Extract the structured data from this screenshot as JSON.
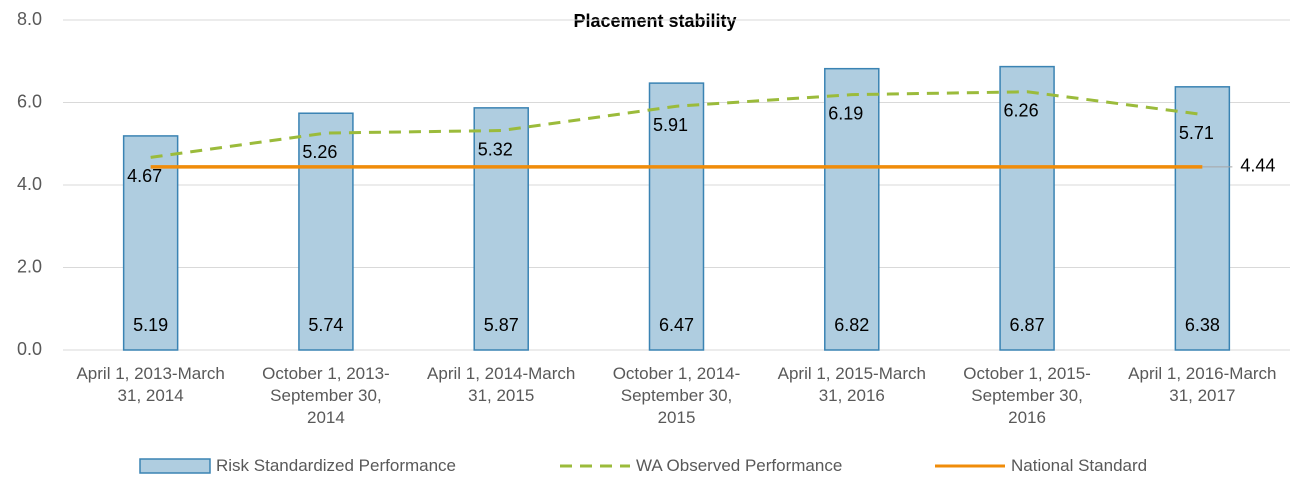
{
  "chart_data": {
    "type": "bar-line",
    "title": "Placement stability",
    "categories": [
      "April 1, 2013-March 31, 2014",
      "October 1, 2013-September 30, 2014",
      "April 1, 2014-March 31, 2015",
      "October 1, 2014-September 30, 2015",
      "April 1, 2015-March 31, 2016",
      "October 1, 2015-September 30, 2016",
      "April 1, 2016-March 31, 2017"
    ],
    "series": [
      {
        "name": "Risk Standardized Performance",
        "type": "bar",
        "color": "#afcde0",
        "values": [
          5.19,
          5.74,
          5.87,
          6.47,
          6.82,
          6.87,
          6.38
        ]
      },
      {
        "name": "WA Observed Performance",
        "type": "line",
        "dashed": true,
        "color": "#9bbb3b",
        "values": [
          4.67,
          5.26,
          5.32,
          5.91,
          6.19,
          6.26,
          5.71
        ]
      },
      {
        "name": "National Standard",
        "type": "line",
        "color": "#f08c0a",
        "values": [
          4.44,
          4.44,
          4.44,
          4.44,
          4.44,
          4.44,
          4.44
        ]
      }
    ],
    "ylim": [
      0,
      8
    ],
    "yticks": [
      {
        "value": 0,
        "label": "0.0"
      },
      {
        "value": 2,
        "label": "2.0"
      },
      {
        "value": 4,
        "label": "4.0"
      },
      {
        "value": 6,
        "label": "6.0"
      },
      {
        "value": 8,
        "label": "8.0"
      }
    ],
    "grid": true,
    "legend": "bottom"
  }
}
